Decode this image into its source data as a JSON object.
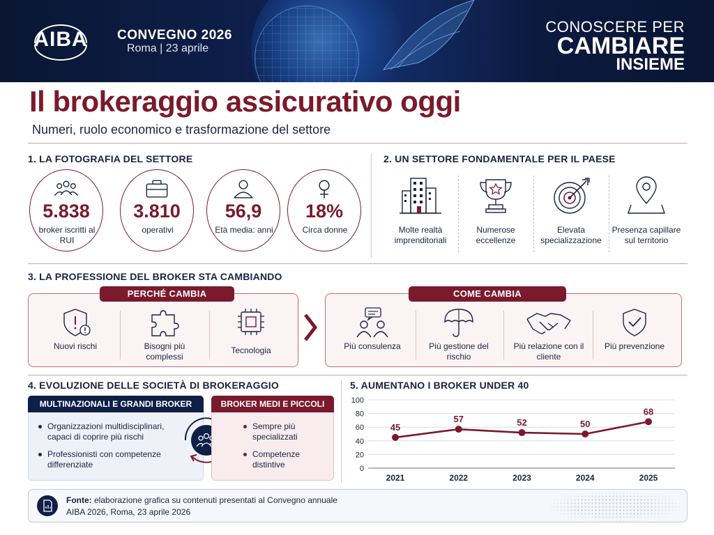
{
  "header": {
    "logo": "AIBA",
    "event_title": "CONVEGNO 2026",
    "event_date": "Roma | 23 aprile",
    "slogan_line1": "CONOSCERE PER",
    "slogan_line2": "CAMBIARE",
    "slogan_line3": "INSIEME"
  },
  "title": "Il brokeraggio assicurativo oggi",
  "subtitle": "Numeri, ruolo economico e trasformazione del settore",
  "colors": {
    "primary": "#7a1a2c",
    "navy": "#0f1f46",
    "panel_bg": "#fbf4f5"
  },
  "section1": {
    "title": "1. LA FOTOGRAFIA DEL SETTORE",
    "stats": [
      {
        "icon": "people-group-icon",
        "value": "5.838",
        "label": "broker iscritti al RUI"
      },
      {
        "icon": "briefcase-icon",
        "value": "3.810",
        "label": "operativi"
      },
      {
        "icon": "person-icon",
        "value": "56,9",
        "label": "Età media: anni"
      },
      {
        "icon": "female-symbol-icon",
        "value": "18%",
        "label": "Circa donne"
      }
    ]
  },
  "section2": {
    "title": "2. UN SETTORE FONDAMENTALE PER IL PAESE",
    "items": [
      {
        "icon": "buildings-icon",
        "label": "Molte realtà imprenditoriali"
      },
      {
        "icon": "trophy-icon",
        "label": "Numerose eccellenze"
      },
      {
        "icon": "target-icon",
        "label": "Elevata specializzazione"
      },
      {
        "icon": "map-pin-icon",
        "label": "Presenza capillare sul territorio"
      }
    ]
  },
  "section3": {
    "title": "3. LA PROFESSIONE DEL BROKER STA CAMBIANDO",
    "why_label": "PERCHÉ CAMBIA",
    "how_label": "COME CAMBIA",
    "why": [
      {
        "icon": "shield-alert-icon",
        "label": "Nuovi rischi"
      },
      {
        "icon": "puzzle-icon",
        "label": "Bisogni più complessi"
      },
      {
        "icon": "chip-icon",
        "label": "Tecnologia"
      }
    ],
    "how": [
      {
        "icon": "consulting-icon",
        "label": "Più consulenza"
      },
      {
        "icon": "umbrella-icon",
        "label": "Più gestione del rischio"
      },
      {
        "icon": "handshake-icon",
        "label": "Più relazione con il cliente"
      },
      {
        "icon": "shield-check-icon",
        "label": "Più prevenzione"
      }
    ]
  },
  "section4": {
    "title": "4. EVOLUZIONE DELLE SOCIETÀ DI BROKERAGGIO",
    "left_label": "MULTINAZIONALI E GRANDI BROKER",
    "left_bullets": [
      "Organizzazioni multidisciplinari, capaci di coprire più rischi",
      "Professionisti con competenze differenziate"
    ],
    "right_label": "BROKER MEDI E PICCOLI",
    "right_bullets": [
      "Sempre più specializzati",
      "Competenze distintive"
    ]
  },
  "section5": {
    "title": "5. AUMENTANO I BROKER UNDER 40"
  },
  "chart_data": {
    "type": "line",
    "categories": [
      "2021",
      "2022",
      "2023",
      "2024",
      "2025"
    ],
    "values": [
      45,
      57,
      52,
      50,
      68
    ],
    "data_labels": [
      "45",
      "57",
      "52",
      "50",
      "68"
    ],
    "yticks": [
      "0",
      "20",
      "40",
      "60",
      "80",
      "100"
    ],
    "ylim": [
      0,
      100
    ],
    "grid": true,
    "color": "#7a1a2c"
  },
  "footer": {
    "source_label": "Fonte:",
    "source_text": "elaborazione grafica su contenuti presentati al Convegno annuale",
    "source_line2": "AIBA 2026, Roma, 23 aprile 2026"
  }
}
